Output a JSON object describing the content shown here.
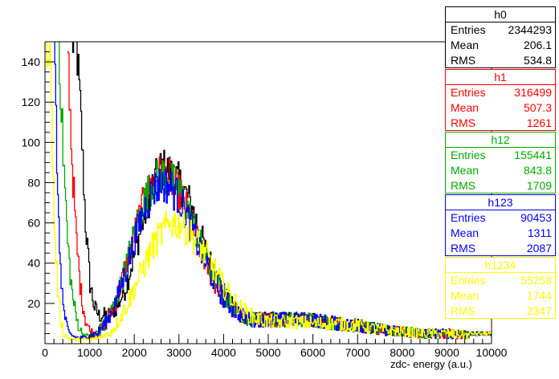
{
  "chart_data": {
    "type": "line",
    "title": "",
    "xlabel": "zdc- energy (a.u.)",
    "ylabel": "",
    "xlim": [
      0,
      10000
    ],
    "ylim": [
      0,
      150
    ],
    "x_ticks": [
      0,
      1000,
      2000,
      3000,
      4000,
      5000,
      6000,
      7000,
      8000,
      9000,
      10000
    ],
    "y_ticks": [
      20,
      40,
      60,
      80,
      100,
      120,
      140
    ],
    "grid": false,
    "legend": "stat boxes top-right",
    "series": [
      {
        "name": "h0",
        "color": "#000000",
        "x": [
          600,
          700,
          800,
          900,
          1000,
          1100,
          1200,
          1400,
          1600,
          1800,
          2000,
          2200,
          2400,
          2600,
          2800,
          3000,
          3200,
          3400,
          3600,
          3800,
          4000,
          4200,
          4400,
          4600,
          4800,
          5000,
          5500,
          6000,
          6500,
          7000,
          7500,
          8000,
          8500,
          9000,
          9500,
          10000
        ],
        "y": [
          150,
          150,
          110,
          60,
          30,
          18,
          14,
          14,
          18,
          28,
          45,
          62,
          78,
          88,
          85,
          80,
          72,
          60,
          45,
          35,
          25,
          18,
          15,
          12,
          12,
          12,
          12,
          12,
          10,
          9,
          7,
          6,
          5,
          5,
          4,
          4
        ]
      },
      {
        "name": "h1",
        "color": "#ff0000",
        "x": [
          500,
          600,
          700,
          800,
          900,
          1000,
          1100,
          1200,
          1400,
          1600,
          1800,
          2000,
          2200,
          2400,
          2600,
          2800,
          3000,
          3200,
          3400,
          3600,
          3800,
          4000,
          4200,
          4400,
          4600,
          4800,
          5000,
          5500,
          6000,
          6500,
          7000,
          7500,
          8000,
          8500,
          9000,
          9500,
          10000
        ],
        "y": [
          150,
          90,
          50,
          25,
          12,
          6,
          5,
          6,
          12,
          22,
          38,
          55,
          70,
          80,
          85,
          82,
          75,
          65,
          52,
          40,
          30,
          22,
          17,
          14,
          12,
          12,
          12,
          12,
          12,
          10,
          9,
          7,
          6,
          5,
          5,
          4,
          4
        ]
      },
      {
        "name": "h12",
        "color": "#00aa00",
        "x": [
          300,
          400,
          500,
          600,
          700,
          800,
          900,
          1000,
          1200,
          1400,
          1600,
          1800,
          2000,
          2200,
          2400,
          2600,
          2800,
          3000,
          3200,
          3400,
          3600,
          3800,
          4000,
          4200,
          4400,
          4600,
          4800,
          5000,
          5500,
          6000,
          6500,
          7000,
          7500,
          8000,
          8500,
          9000,
          9500,
          10000
        ],
        "y": [
          150,
          95,
          50,
          25,
          12,
          6,
          3,
          3,
          6,
          12,
          22,
          38,
          55,
          70,
          80,
          84,
          82,
          76,
          66,
          54,
          42,
          32,
          24,
          18,
          14,
          12,
          12,
          12,
          12,
          12,
          10,
          9,
          7,
          6,
          5,
          5,
          4,
          4
        ]
      },
      {
        "name": "h123",
        "color": "#0000ff",
        "x": [
          200,
          300,
          400,
          500,
          600,
          700,
          800,
          900,
          1000,
          1200,
          1400,
          1600,
          1800,
          2000,
          2200,
          2400,
          2600,
          2800,
          3000,
          3200,
          3400,
          3600,
          3800,
          4000,
          4200,
          4400,
          4600,
          4800,
          5000,
          5500,
          6000,
          6500,
          7000,
          7500,
          8000,
          8500,
          9000,
          9500,
          10000
        ],
        "y": [
          150,
          55,
          18,
          6,
          3,
          2,
          2,
          2,
          3,
          6,
          12,
          22,
          36,
          52,
          66,
          76,
          80,
          78,
          72,
          62,
          50,
          40,
          30,
          22,
          17,
          14,
          12,
          12,
          12,
          12,
          12,
          10,
          9,
          7,
          6,
          5,
          5,
          4,
          4
        ]
      },
      {
        "name": "h1234",
        "color": "#ffff00",
        "x": [
          0,
          100,
          200,
          300,
          400,
          500,
          600,
          800,
          1000,
          1200,
          1400,
          1600,
          1800,
          2000,
          2200,
          2400,
          2600,
          2800,
          3000,
          3200,
          3400,
          3600,
          3800,
          4000,
          4200,
          4400,
          4600,
          4800,
          5000,
          5500,
          6000,
          6500,
          7000,
          7500,
          8000,
          8500,
          9000,
          9500,
          10000
        ],
        "y": [
          150,
          150,
          60,
          20,
          5,
          2,
          1,
          1,
          1,
          2,
          4,
          10,
          18,
          28,
          38,
          48,
          55,
          60,
          60,
          56,
          50,
          44,
          36,
          28,
          22,
          17,
          14,
          12,
          11,
          11,
          10,
          10,
          9,
          7,
          6,
          5,
          5,
          4,
          4
        ]
      }
    ]
  },
  "stat_boxes": [
    {
      "name": "h0",
      "color": "#000000",
      "entries": "2344293",
      "mean": "206.1",
      "rms": "534.8"
    },
    {
      "name": "h1",
      "color": "#ff0000",
      "entries": "316499",
      "mean": "507.3",
      "rms": "1261"
    },
    {
      "name": "h12",
      "color": "#00aa00",
      "entries": "155441",
      "mean": "843.8",
      "rms": "1709"
    },
    {
      "name": "h123",
      "color": "#0000ff",
      "entries": "90453",
      "mean": "1311",
      "rms": "2087"
    },
    {
      "name": "h1234",
      "color": "#ffff00",
      "entries": "55258",
      "mean": "1744",
      "rms": "2347"
    }
  ],
  "labels": {
    "entries": "Entries",
    "mean": "Mean",
    "rms": "RMS"
  }
}
